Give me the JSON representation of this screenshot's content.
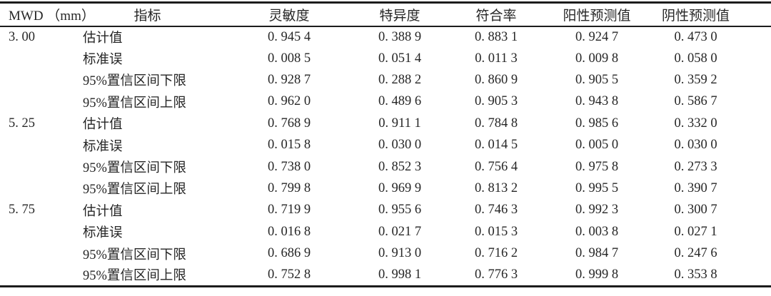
{
  "colors": {
    "text": "#262626",
    "rule": "#1c1c1c",
    "background": "#ffffff"
  },
  "table": {
    "columns": [
      "MWD （mm）",
      "指标",
      "灵敏度",
      "特异度",
      "符合率",
      "阳性预测值",
      "阴性预测值"
    ],
    "groups": [
      {
        "mwd": "3. 00",
        "rows": [
          {
            "label": "估计值",
            "values": [
              "0. 945 4",
              "0. 388 9",
              "0. 883 1",
              "0. 924 7",
              "0. 473 0"
            ]
          },
          {
            "label": "标准误",
            "values": [
              "0. 008 5",
              "0. 051 4",
              "0. 011 3",
              "0. 009 8",
              "0. 058 0"
            ]
          },
          {
            "label": "95%置信区间下限",
            "values": [
              "0. 928 7",
              "0. 288 2",
              "0. 860 9",
              "0. 905 5",
              "0. 359 2"
            ]
          },
          {
            "label": "95%置信区间上限",
            "values": [
              "0. 962 0",
              "0. 489 6",
              "0. 905 3",
              "0. 943 8",
              "0. 586 7"
            ]
          }
        ]
      },
      {
        "mwd": "5. 25",
        "rows": [
          {
            "label": "估计值",
            "values": [
              "0. 768 9",
              "0. 911 1",
              "0. 784 8",
              "0. 985 6",
              "0. 332 0"
            ]
          },
          {
            "label": "标准误",
            "values": [
              "0. 015 8",
              "0. 030 0",
              "0. 014 5",
              "0. 005 0",
              "0. 030 0"
            ]
          },
          {
            "label": "95%置信区间下限",
            "values": [
              "0. 738 0",
              "0. 852 3",
              "0. 756 4",
              "0. 975 8",
              "0. 273 3"
            ]
          },
          {
            "label": "95%置信区间上限",
            "values": [
              "0. 799 8",
              "0. 969 9",
              "0. 813 2",
              "0. 995 5",
              "0. 390 7"
            ]
          }
        ]
      },
      {
        "mwd": "5. 75",
        "rows": [
          {
            "label": "估计值",
            "values": [
              "0. 719 9",
              "0. 955 6",
              "0. 746 3",
              "0. 992 3",
              "0. 300 7"
            ]
          },
          {
            "label": "标准误",
            "values": [
              "0. 016 8",
              "0. 021 7",
              "0. 015 3",
              "0. 003 8",
              "0. 027 1"
            ]
          },
          {
            "label": "95%置信区间下限",
            "values": [
              "0. 686 9",
              "0. 913 0",
              "0. 716 2",
              "0. 984 7",
              "0. 247 6"
            ]
          },
          {
            "label": "95%置信区间上限",
            "values": [
              "0. 752 8",
              "0. 998 1",
              "0. 776 3",
              "0. 999 8",
              "0. 353 8"
            ]
          }
        ]
      }
    ]
  }
}
